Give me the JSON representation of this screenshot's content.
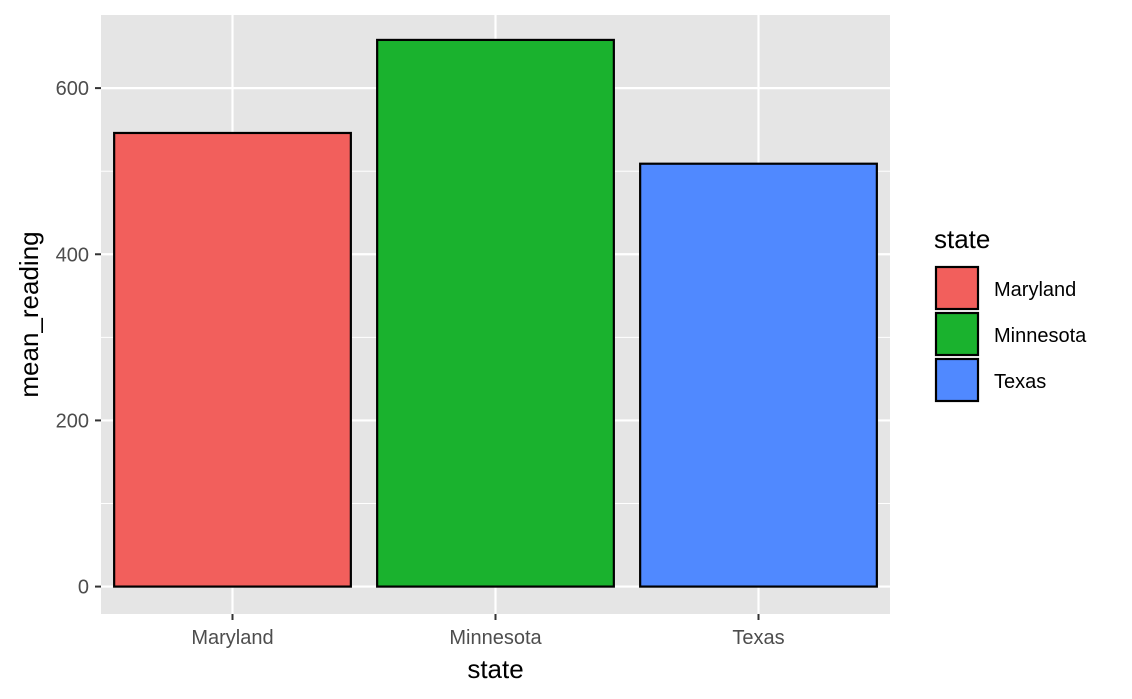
{
  "chart_data": {
    "type": "bar",
    "categories": [
      "Maryland",
      "Minnesota",
      "Texas"
    ],
    "values": [
      546,
      658,
      509
    ],
    "xlabel": "state",
    "ylabel": "mean_reading",
    "ylim": [
      -33,
      688
    ],
    "yticks": [
      0,
      200,
      400,
      600
    ],
    "grid": true,
    "legend": {
      "title": "state",
      "position": "right",
      "entries": [
        "Maryland",
        "Minnesota",
        "Texas"
      ]
    },
    "colors": [
      "#F25F5C",
      "#1AB22E",
      "#5089FF"
    ],
    "panel_background": "#E5E5E5",
    "gridline_color": "#FFFFFF",
    "bar_outline": "#000000"
  }
}
